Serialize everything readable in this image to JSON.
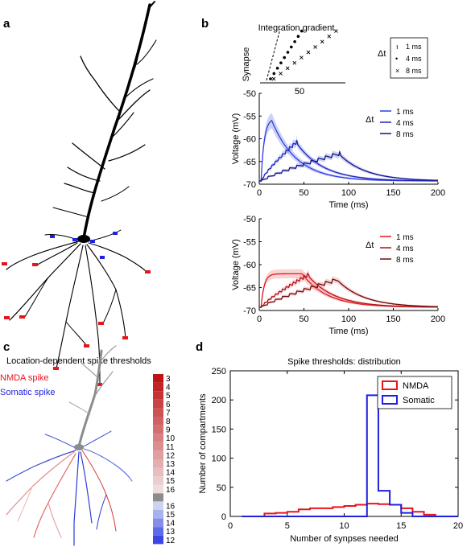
{
  "panels": {
    "a": {
      "letter": "a"
    },
    "b": {
      "letter": "b",
      "title": "Integration gradient",
      "synapse_label": "Synapse",
      "x_tick": "50",
      "delta_t": "Δt",
      "legend": [
        {
          "marker": "ı",
          "label": "1 ms"
        },
        {
          "marker": "•",
          "label": "4 ms"
        },
        {
          "marker": "×",
          "label": "8 ms"
        }
      ]
    },
    "c": {
      "letter": "c",
      "title": "Location-dependent spike thresholds",
      "nmda_label": "NMDA spike",
      "somatic_label": "Somatic spike",
      "colorbar_top": [
        "3",
        "4",
        "5",
        "6",
        "7",
        "8",
        "9",
        "10",
        "11",
        "12",
        "13",
        "14",
        "15",
        "16"
      ],
      "colorbar_bottom": [
        "16",
        "15",
        "14",
        "13",
        "12"
      ]
    },
    "d": {
      "letter": "d"
    }
  },
  "colors": {
    "red": "#e8141c",
    "blue": "#1f1fe0",
    "black": "#000000",
    "gray": "#8c8c8c"
  },
  "chart_data": [
    {
      "type": "line",
      "panel": "b-middle",
      "xlabel": "Time (ms)",
      "ylabel": "Voltage (mV)",
      "xlim": [
        0,
        200
      ],
      "ylim": [
        -70,
        -50
      ],
      "xticks": [
        "0",
        "50",
        "100",
        "150",
        "200"
      ],
      "yticks": [
        "-50",
        "-55",
        "-60",
        "-65",
        "-70"
      ],
      "legend_title": "Δt",
      "series": [
        {
          "name": "1 ms",
          "color": "#2b3fe8",
          "peak_time": 14,
          "peak": -56,
          "n_steps": 1,
          "dt": 1
        },
        {
          "name": "4 ms",
          "color": "#1f22b8",
          "peak_time": 42,
          "peak": -61,
          "n_steps": 10,
          "dt": 4
        },
        {
          "name": "8 ms",
          "color": "#121383",
          "peak_time": 90,
          "peak": -63.5,
          "n_steps": 10,
          "dt": 8
        }
      ]
    },
    {
      "type": "line",
      "panel": "b-bottom",
      "xlabel": "Time (ms)",
      "ylabel": "Voltage (mV)",
      "xlim": [
        0,
        200
      ],
      "ylim": [
        -70,
        -50
      ],
      "xticks": [
        "0",
        "50",
        "100",
        "150",
        "200"
      ],
      "yticks": [
        "-50",
        "-55",
        "-60",
        "-65",
        "-70"
      ],
      "legend_title": "Δt",
      "series": [
        {
          "name": "1 ms",
          "color": "#e5141b",
          "peak_time": 48,
          "peak": -62,
          "n_steps": 1,
          "dt": 1
        },
        {
          "name": "4 ms",
          "color": "#b01116",
          "peak_time": 55,
          "peak": -62.5,
          "n_steps": 10,
          "dt": 4
        },
        {
          "name": "8 ms",
          "color": "#6a0b0d",
          "peak_time": 88,
          "peak": -63.5,
          "n_steps": 10,
          "dt": 8
        }
      ]
    },
    {
      "type": "bar",
      "panel": "d",
      "title": "Spike thresholds: distribution",
      "xlabel": "Number of synpses needed",
      "ylabel": "Number of compartments",
      "xlim": [
        0,
        20
      ],
      "ylim": [
        0,
        250
      ],
      "xticks": [
        "0",
        "5",
        "10",
        "15",
        "20"
      ],
      "yticks": [
        "0",
        "50",
        "100",
        "150",
        "200",
        "250"
      ],
      "legend": [
        "NMDA",
        "Somatic"
      ],
      "bin_edges": [
        1,
        2,
        3,
        4,
        5,
        6,
        7,
        8,
        9,
        10,
        11,
        12,
        13,
        14,
        15,
        16,
        17,
        18,
        19,
        20
      ],
      "series": [
        {
          "name": "NMDA",
          "color": "#e8141c",
          "values": [
            0,
            0,
            5,
            6,
            8,
            12,
            14,
            14,
            16,
            18,
            20,
            22,
            21,
            20,
            14,
            8,
            3,
            0,
            0
          ]
        },
        {
          "name": "Somatic",
          "color": "#1f1fe0",
          "values": [
            0,
            0,
            0,
            0,
            0,
            0,
            0,
            0,
            0,
            0,
            0,
            208,
            44,
            20,
            6,
            0,
            0,
            0,
            0
          ]
        }
      ]
    }
  ]
}
